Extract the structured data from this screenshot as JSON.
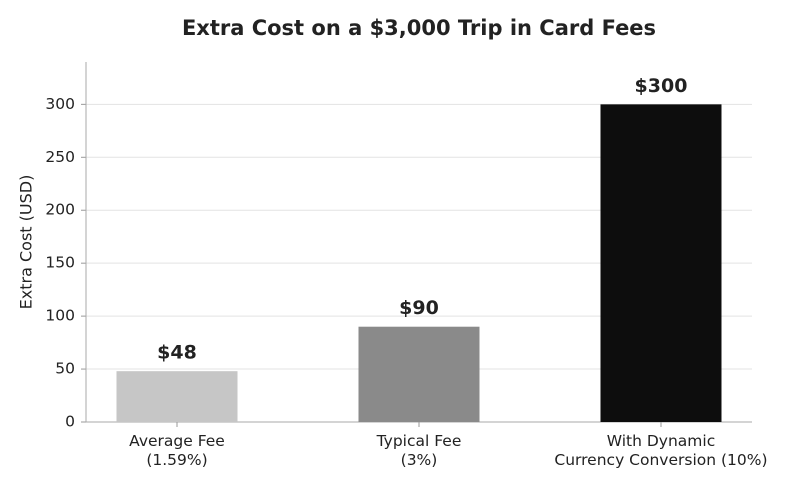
{
  "chart_data": {
    "type": "bar",
    "title": "Extra Cost on a $3,000 Trip in Card Fees",
    "y_label": "Extra Cost (USD)",
    "categories": [
      "Average Fee\n(1.59%)",
      "Typical Fee\n(3%)",
      "With Dynamic\nCurrency Conversion (10%)"
    ],
    "values": [
      48,
      90,
      300
    ],
    "value_labels": [
      "$48",
      "$90",
      "$300"
    ],
    "colors": [
      "#c6c6c6",
      "#8a8a8a",
      "#0d0d0d"
    ],
    "ylim": [
      0,
      340
    ],
    "yticks": [
      0,
      50,
      100,
      150,
      200,
      250,
      300
    ],
    "grid": true
  }
}
